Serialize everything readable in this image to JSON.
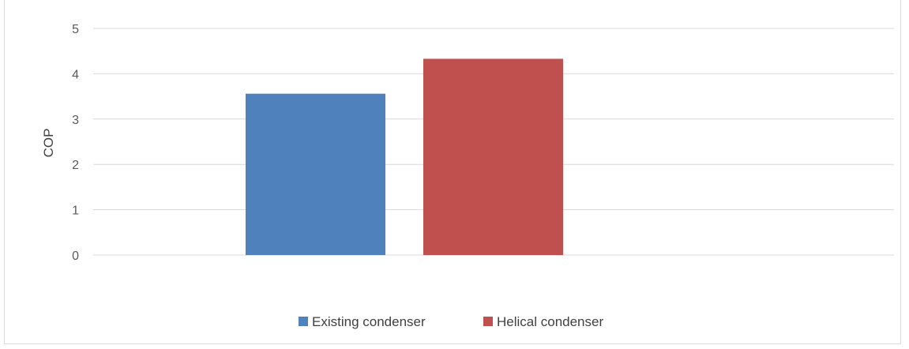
{
  "chart_data": {
    "type": "bar",
    "categories": [
      ""
    ],
    "series": [
      {
        "name": "Existing condenser",
        "values": [
          3.56
        ],
        "color": "#4f81bd"
      },
      {
        "name": "Helical condenser",
        "values": [
          4.33
        ],
        "color": "#c0504d"
      }
    ],
    "title": "",
    "xlabel": "",
    "ylabel": "COP",
    "ylim": [
      0,
      5
    ],
    "yticks": [
      "0",
      "1",
      "2",
      "3",
      "4",
      "5"
    ],
    "grid": true,
    "legend_position": "bottom"
  }
}
